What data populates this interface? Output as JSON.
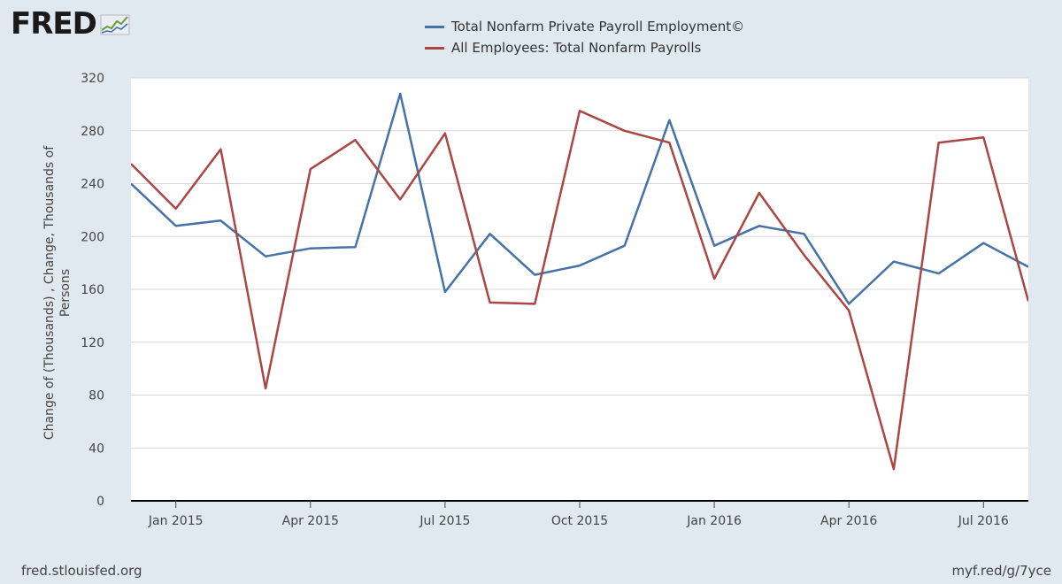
{
  "logo": {
    "text": "FRED",
    "icon": "fred-sparkline-icon"
  },
  "footer": {
    "left": "fred.stlouisfed.org",
    "right": "myf.red/g/7yce"
  },
  "chart_data": {
    "type": "line",
    "title": "",
    "ylabel": "Change of (Thousands) , Change, Thousands of Persons",
    "ylabel_lines": [
      "Change of (Thousands) , Change, Thousands of",
      "Persons"
    ],
    "xlabel": "",
    "ylim": [
      0,
      320
    ],
    "yticks": [
      0,
      40,
      80,
      120,
      160,
      200,
      240,
      280,
      320
    ],
    "grid": true,
    "legend_position": "top",
    "x": [
      "2014-12",
      "2015-01",
      "2015-02",
      "2015-03",
      "2015-04",
      "2015-05",
      "2015-06",
      "2015-07",
      "2015-08",
      "2015-09",
      "2015-10",
      "2015-11",
      "2015-12",
      "2016-01",
      "2016-02",
      "2016-03",
      "2016-04",
      "2016-05",
      "2016-06",
      "2016-07",
      "2016-08"
    ],
    "xticks": [
      {
        "label": "Jan 2015",
        "x": "2015-01"
      },
      {
        "label": "Apr 2015",
        "x": "2015-04"
      },
      {
        "label": "Jul 2015",
        "x": "2015-07"
      },
      {
        "label": "Oct 2015",
        "x": "2015-10"
      },
      {
        "label": "Jan 2016",
        "x": "2016-01"
      },
      {
        "label": "Apr 2016",
        "x": "2016-04"
      },
      {
        "label": "Jul 2016",
        "x": "2016-07"
      }
    ],
    "series": [
      {
        "name": "Total Nonfarm Private Payroll Employment©",
        "color": "#4572a7",
        "values": [
          240,
          208,
          212,
          185,
          191,
          192,
          308,
          158,
          202,
          171,
          178,
          193,
          288,
          193,
          208,
          202,
          149,
          181,
          172,
          195,
          177
        ]
      },
      {
        "name": "All Employees: Total Nonfarm Payrolls",
        "color": "#aa4643",
        "values": [
          255,
          221,
          266,
          85,
          251,
          273,
          228,
          278,
          150,
          149,
          295,
          280,
          271,
          168,
          233,
          186,
          144,
          24,
          271,
          275,
          151
        ]
      }
    ]
  }
}
